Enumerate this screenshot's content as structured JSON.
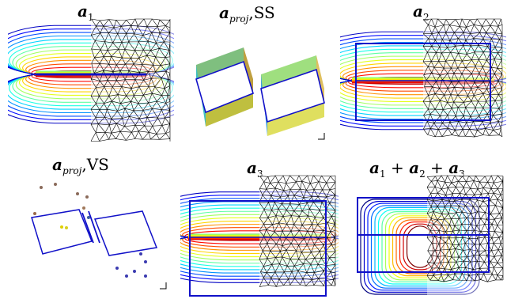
{
  "panels": [
    {
      "id": "a1",
      "label_main": "a",
      "label_sub": "1",
      "label_tail": ""
    },
    {
      "id": "aproj_ss",
      "label_main": "a",
      "label_sub": "proj",
      "label_tail": ",SS"
    },
    {
      "id": "a2",
      "label_main": "a",
      "label_sub": "2",
      "label_tail": ""
    },
    {
      "id": "aproj_vs",
      "label_main": "a",
      "label_sub": "proj",
      "label_tail": ",VS"
    },
    {
      "id": "a3",
      "label_main": "a",
      "label_sub": "3",
      "label_tail": ""
    },
    {
      "id": "sum",
      "label_main": "a",
      "label_sub": "1",
      "label_tail": "+ a2 + a3"
    }
  ],
  "colors": {
    "frame": "#1010c8",
    "mesh": "#000000",
    "contour_warm": "#e02010",
    "contour_cool": "#10a0e0"
  }
}
